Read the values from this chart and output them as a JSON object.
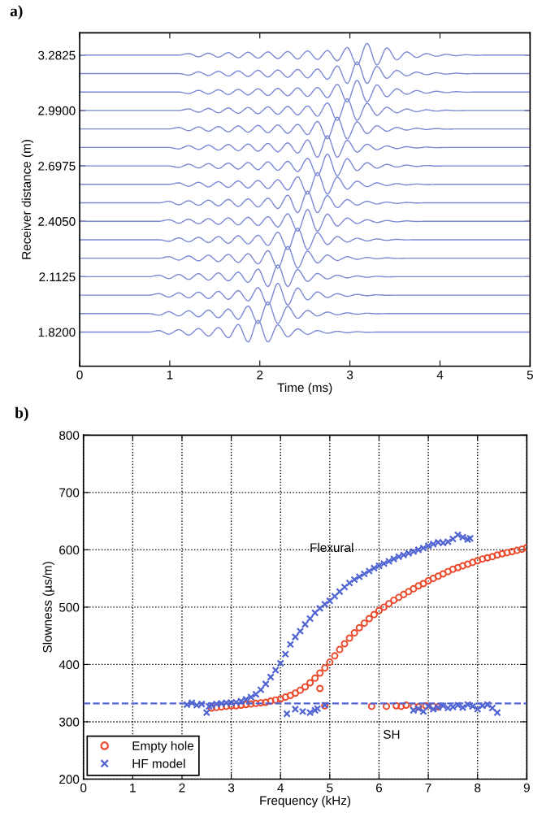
{
  "chart_data": [
    {
      "type": "line",
      "title": "a)",
      "xlabel": "Time (ms)",
      "ylabel": "Receiver distance (m)",
      "xlim": [
        0,
        5
      ],
      "ylim": [
        1.64,
        3.4
      ],
      "xticks": [
        0,
        1,
        2,
        3,
        4,
        5
      ],
      "yticks": [
        {
          "value": 1.82,
          "label": "1.8200"
        },
        {
          "value": 2.1125,
          "label": "2.1125"
        },
        {
          "value": 2.405,
          "label": "2.4050"
        },
        {
          "value": 2.6975,
          "label": "2.6975"
        },
        {
          "value": 2.99,
          "label": "2.9900"
        },
        {
          "value": 3.2825,
          "label": "3.2825"
        }
      ],
      "grid": false,
      "legend": false,
      "x": [
        0,
        0.77,
        0.88,
        0.99,
        1.1,
        1.21,
        1.32,
        1.43,
        1.54,
        1.65,
        1.76,
        1.87,
        1.98,
        2.09,
        2.2,
        2.31,
        2.42,
        2.53,
        2.64,
        2.75,
        2.86,
        2.97,
        3.08,
        3.19,
        3.3,
        3.41,
        3.52,
        3.63,
        3.74,
        3.85,
        3.96,
        4.07,
        4.18,
        4.29,
        4.4,
        4.51,
        4.62,
        5
      ],
      "series": [
        {
          "color": "#7b88d4",
          "values": [
            1.82,
            1.82,
            1.828,
            1.809,
            1.833,
            1.804,
            1.839,
            1.799,
            1.844,
            1.79,
            1.86,
            1.768,
            1.882,
            1.768,
            1.858,
            1.795,
            1.837,
            1.808,
            1.828,
            1.814,
            1.824,
            1.817,
            1.822,
            1.819,
            1.82,
            1.82,
            1.82,
            1.82,
            1.82,
            1.82,
            1.82,
            1.82,
            1.82,
            1.82,
            1.82,
            1.82,
            1.82,
            1.82
          ]
        },
        {
          "color": "#7b88d4",
          "values": [
            1.9175,
            1.9175,
            1.9095,
            1.9275,
            1.9055,
            1.9325,
            1.9005,
            1.9365,
            1.8955,
            1.9415,
            1.8875,
            1.9575,
            1.8655,
            1.9795,
            1.8655,
            1.9555,
            1.8925,
            1.9345,
            1.9055,
            1.9255,
            1.9115,
            1.9215,
            1.9145,
            1.9195,
            1.9165,
            1.9175,
            1.9175,
            1.9175,
            1.9175,
            1.9175,
            1.9175,
            1.9175,
            1.9175,
            1.9175,
            1.9175,
            1.9175,
            1.9175,
            1.9175
          ]
        },
        {
          "color": "#7b88d4",
          "values": [
            2.015,
            2.015,
            2.023,
            2.005,
            2.027,
            2.001,
            2.031,
            1.997,
            2.035,
            1.993,
            2.039,
            1.985,
            2.055,
            1.963,
            2.077,
            1.963,
            2.053,
            1.99,
            2.032,
            2.003,
            2.023,
            2.009,
            2.019,
            2.012,
            2.017,
            2.014,
            2.015,
            2.015,
            2.015,
            2.015,
            2.015,
            2.015,
            2.015,
            2.015,
            2.015,
            2.015,
            2.015,
            2.015
          ]
        },
        {
          "color": "#7b88d4",
          "values": [
            2.1125,
            2.1125,
            2.1205,
            2.1025,
            2.1245,
            2.0985,
            2.1285,
            2.0945,
            2.1325,
            2.0905,
            2.1365,
            2.0825,
            2.1525,
            2.0605,
            2.1745,
            2.0605,
            2.1505,
            2.0875,
            2.1295,
            2.1005,
            2.1205,
            2.1065,
            2.1165,
            2.1095,
            2.1145,
            2.1115,
            2.1125,
            2.1125,
            2.1125,
            2.1125,
            2.1125,
            2.1125,
            2.1125,
            2.1125,
            2.1125,
            2.1125,
            2.1125,
            2.1125
          ]
        },
        {
          "color": "#7b88d4",
          "values": [
            2.21,
            2.21,
            2.21,
            2.218,
            2.2,
            2.222,
            2.196,
            2.226,
            2.192,
            2.23,
            2.188,
            2.234,
            2.18,
            2.25,
            2.158,
            2.272,
            2.158,
            2.248,
            2.185,
            2.227,
            2.198,
            2.218,
            2.204,
            2.214,
            2.207,
            2.212,
            2.209,
            2.21,
            2.21,
            2.21,
            2.21,
            2.21,
            2.21,
            2.21,
            2.21,
            2.21,
            2.21,
            2.21
          ]
        },
        {
          "color": "#7b88d4",
          "values": [
            2.3075,
            2.3075,
            2.3075,
            2.2995,
            2.3175,
            2.2965,
            2.3205,
            2.2925,
            2.3245,
            2.2885,
            2.3285,
            2.2855,
            2.3315,
            2.2775,
            2.3475,
            2.2555,
            2.3695,
            2.2555,
            2.3455,
            2.2825,
            2.3245,
            2.2955,
            2.3155,
            2.3015,
            2.3115,
            2.3045,
            2.3095,
            2.3065,
            2.3075,
            2.3075,
            2.3075,
            2.3075,
            2.3075,
            2.3075,
            2.3075,
            2.3075,
            2.3075,
            2.3075
          ]
        },
        {
          "color": "#7b88d4",
          "values": [
            2.405,
            2.405,
            2.405,
            2.413,
            2.395,
            2.416,
            2.392,
            2.419,
            2.389,
            2.423,
            2.386,
            2.426,
            2.383,
            2.429,
            2.375,
            2.445,
            2.353,
            2.467,
            2.353,
            2.443,
            2.38,
            2.422,
            2.393,
            2.413,
            2.399,
            2.409,
            2.402,
            2.407,
            2.404,
            2.405,
            2.405,
            2.405,
            2.405,
            2.405,
            2.405,
            2.405,
            2.405,
            2.405
          ]
        },
        {
          "color": "#7b88d4",
          "values": [
            2.5025,
            2.5025,
            2.5025,
            2.5105,
            2.4925,
            2.5135,
            2.4895,
            2.5165,
            2.4865,
            2.5205,
            2.4835,
            2.5235,
            2.4805,
            2.5265,
            2.4725,
            2.5425,
            2.4505,
            2.5645,
            2.4505,
            2.5405,
            2.4775,
            2.5195,
            2.4905,
            2.5105,
            2.4965,
            2.5065,
            2.4995,
            2.5045,
            2.5015,
            2.5025,
            2.5025,
            2.5025,
            2.5025,
            2.5025,
            2.5025,
            2.5025,
            2.5025,
            2.5025
          ]
        },
        {
          "color": "#7b88d4",
          "values": [
            2.6,
            2.6,
            2.6,
            2.6,
            2.608,
            2.59,
            2.611,
            2.587,
            2.614,
            2.584,
            2.618,
            2.581,
            2.621,
            2.578,
            2.624,
            2.57,
            2.64,
            2.548,
            2.662,
            2.548,
            2.638,
            2.575,
            2.617,
            2.588,
            2.608,
            2.594,
            2.604,
            2.597,
            2.602,
            2.599,
            2.6,
            2.6,
            2.6,
            2.6,
            2.6,
            2.6,
            2.6,
            2.6
          ]
        },
        {
          "color": "#7b88d4",
          "values": [
            2.6975,
            2.6975,
            2.6975,
            2.6975,
            2.6895,
            2.7065,
            2.6865,
            2.7095,
            2.6835,
            2.7125,
            2.6805,
            2.7155,
            2.6775,
            2.7185,
            2.6745,
            2.7215,
            2.6675,
            2.7375,
            2.6455,
            2.7595,
            2.6455,
            2.7355,
            2.6725,
            2.7145,
            2.6855,
            2.7055,
            2.6915,
            2.7015,
            2.6945,
            2.6995,
            2.6965,
            2.6975,
            2.6975,
            2.6975,
            2.6975,
            2.6975,
            2.6975,
            2.6975
          ]
        },
        {
          "color": "#7b88d4",
          "values": [
            2.795,
            2.795,
            2.795,
            2.795,
            2.787,
            2.804,
            2.784,
            2.807,
            2.781,
            2.81,
            2.778,
            2.813,
            2.775,
            2.816,
            2.772,
            2.819,
            2.765,
            2.835,
            2.743,
            2.857,
            2.743,
            2.833,
            2.77,
            2.812,
            2.783,
            2.803,
            2.789,
            2.799,
            2.792,
            2.797,
            2.794,
            2.795,
            2.795,
            2.795,
            2.795,
            2.795,
            2.795,
            2.795
          ]
        },
        {
          "color": "#7b88d4",
          "values": [
            2.8925,
            2.8925,
            2.8925,
            2.8925,
            2.9005,
            2.8835,
            2.9035,
            2.8805,
            2.9055,
            2.8775,
            2.9085,
            2.8755,
            2.9115,
            2.8725,
            2.9135,
            2.8695,
            2.9165,
            2.8625,
            2.9325,
            2.8405,
            2.9545,
            2.8405,
            2.9305,
            2.8675,
            2.9095,
            2.8805,
            2.9005,
            2.8865,
            2.8965,
            2.8895,
            2.8945,
            2.8915,
            2.8925,
            2.8925,
            2.8925,
            2.8925,
            2.8925,
            2.8925
          ]
        },
        {
          "color": "#7b88d4",
          "values": [
            2.99,
            2.99,
            2.99,
            2.99,
            2.99,
            2.998,
            2.981,
            3.001,
            2.978,
            3.003,
            2.975,
            3.006,
            2.973,
            3.009,
            2.97,
            3.011,
            2.967,
            3.014,
            2.96,
            3.03,
            2.938,
            3.052,
            2.938,
            3.028,
            2.965,
            3.007,
            2.978,
            2.998,
            2.984,
            2.994,
            2.987,
            2.992,
            2.989,
            2.99,
            2.99,
            2.99,
            2.99,
            2.99
          ]
        },
        {
          "color": "#7b88d4",
          "values": [
            3.0875,
            3.0875,
            3.0875,
            3.0875,
            3.0875,
            3.0795,
            3.0965,
            3.0775,
            3.0995,
            3.0745,
            3.1015,
            3.0725,
            3.1045,
            3.0695,
            3.1065,
            3.0675,
            3.1095,
            3.0645,
            3.1115,
            3.0575,
            3.1275,
            3.0355,
            3.1495,
            3.0355,
            3.1255,
            3.0625,
            3.1045,
            3.0755,
            3.0955,
            3.0815,
            3.0915,
            3.0845,
            3.0895,
            3.0865,
            3.0875,
            3.0875,
            3.0875,
            3.0875
          ]
        },
        {
          "color": "#7b88d4",
          "values": [
            3.185,
            3.185,
            3.185,
            3.185,
            3.185,
            3.177,
            3.194,
            3.175,
            3.197,
            3.172,
            3.199,
            3.17,
            3.202,
            3.167,
            3.204,
            3.165,
            3.207,
            3.162,
            3.209,
            3.155,
            3.225,
            3.133,
            3.247,
            3.133,
            3.223,
            3.16,
            3.202,
            3.173,
            3.193,
            3.179,
            3.189,
            3.182,
            3.187,
            3.184,
            3.185,
            3.185,
            3.185,
            3.185
          ]
        },
        {
          "color": "#7b88d4",
          "values": [
            3.2825,
            3.2825,
            3.2825,
            3.2825,
            3.2825,
            3.2905,
            3.2735,
            3.2925,
            3.2715,
            3.2955,
            3.2685,
            3.2975,
            3.2665,
            3.2995,
            3.2645,
            3.3015,
            3.2615,
            3.3045,
            3.2595,
            3.3065,
            3.2525,
            3.3225,
            3.2305,
            3.3445,
            3.2305,
            3.3205,
            3.2575,
            3.2995,
            3.2705,
            3.2905,
            3.2765,
            3.2865,
            3.2795,
            3.2845,
            3.2815,
            3.2825,
            3.2825,
            3.2825
          ]
        }
      ]
    },
    {
      "type": "scatter",
      "title": "b)",
      "xlabel": "Frequency (kHz)",
      "ylabel": "Slowness (µs/m)",
      "xlim": [
        0,
        9
      ],
      "ylim": [
        200,
        800
      ],
      "xticks": [
        0,
        1,
        2,
        3,
        4,
        5,
        6,
        7,
        8,
        9
      ],
      "yticks": [
        200,
        300,
        400,
        500,
        600,
        700,
        800
      ],
      "grid": true,
      "legend": "bottom left",
      "ref_lines": [
        {
          "axis": "y",
          "value": 332,
          "color": "#4f63d2",
          "line_style": "dashed"
        }
      ],
      "annotations": [
        "Flexural",
        "SH"
      ],
      "series": [
        {
          "name": "Empty hole",
          "color": "#ec4a2c",
          "marker": "circle",
          "x": [
            2.6,
            2.7,
            2.8,
            2.9,
            3.0,
            3.1,
            3.2,
            3.3,
            3.4,
            3.5,
            3.6,
            3.7,
            3.8,
            3.9,
            4.0,
            4.1,
            4.2,
            4.3,
            4.4,
            4.5,
            4.6,
            4.7,
            4.8,
            4.9,
            5.0,
            5.1,
            5.2,
            5.3,
            5.4,
            5.5,
            5.6,
            5.7,
            5.8,
            5.9,
            6.0,
            6.1,
            6.2,
            6.3,
            6.4,
            6.5,
            6.6,
            6.7,
            6.8,
            6.9,
            7.0,
            7.1,
            7.2,
            7.3,
            7.4,
            7.5,
            7.6,
            7.7,
            7.8,
            7.9,
            8.0,
            8.1,
            8.2,
            8.3,
            8.4,
            8.5,
            8.6,
            8.7,
            8.8,
            8.9,
            9.0,
            4.8,
            4.9,
            5.85,
            6.15,
            6.35,
            6.45,
            6.55,
            6.7,
            6.8,
            6.95,
            7.1,
            7.2
          ],
          "values": [
            324,
            325,
            326,
            327,
            328,
            328,
            329,
            330,
            331,
            332,
            333,
            334,
            336,
            338,
            340,
            343,
            346,
            350,
            355,
            361,
            368,
            376,
            385,
            394,
            404,
            415,
            426,
            436,
            446,
            455,
            464,
            472,
            480,
            487,
            494,
            500,
            506,
            512,
            517,
            522,
            527,
            532,
            537,
            541,
            546,
            550,
            554,
            558,
            562,
            566,
            569,
            572,
            575,
            578,
            581,
            584,
            586,
            588,
            591,
            593,
            595,
            597,
            599,
            601,
            604,
            358,
            328,
            327,
            327,
            328,
            327,
            329,
            327,
            326,
            328,
            327,
            326
          ]
        },
        {
          "name": "HF model",
          "color": "#4f63d2",
          "marker": "cross",
          "x": [
            2.1,
            2.2,
            2.3,
            2.4,
            2.5,
            2.55,
            2.6,
            2.7,
            2.8,
            2.9,
            3.0,
            3.1,
            3.2,
            3.3,
            3.4,
            3.5,
            3.6,
            3.7,
            3.8,
            3.9,
            4.0,
            4.1,
            4.2,
            4.3,
            4.4,
            4.5,
            4.6,
            4.7,
            4.8,
            4.9,
            5.0,
            5.1,
            5.2,
            5.3,
            5.4,
            5.5,
            5.6,
            5.7,
            5.8,
            5.9,
            6.0,
            6.1,
            6.2,
            6.3,
            6.4,
            6.5,
            6.6,
            6.7,
            6.8,
            6.9,
            7.0,
            7.1,
            7.2,
            7.3,
            7.4,
            7.5,
            7.6,
            7.7,
            7.8,
            7.85,
            4.13,
            4.3,
            4.45,
            4.6,
            4.7,
            4.75,
            4.9,
            6.7,
            6.8,
            6.9,
            7.0,
            7.1,
            7.2,
            7.3,
            7.4,
            7.5,
            7.6,
            7.7,
            7.8,
            7.9,
            8.0,
            8.1,
            8.2,
            8.3,
            8.4
          ],
          "values": [
            330,
            333,
            329,
            331,
            316,
            327,
            329,
            331,
            332,
            333,
            333,
            334,
            336,
            339,
            343,
            348,
            356,
            366,
            378,
            390,
            402,
            418,
            435,
            448,
            458,
            470,
            480,
            490,
            498,
            505,
            511,
            519,
            527,
            535,
            542,
            548,
            553,
            558,
            563,
            568,
            572,
            576,
            580,
            584,
            588,
            591,
            594,
            597,
            600,
            603,
            607,
            610,
            613,
            612,
            614,
            619,
            626,
            622,
            618,
            620,
            314,
            322,
            318,
            316,
            320,
            323,
            329,
            320,
            323,
            318,
            327,
            322,
            325,
            328,
            324,
            326,
            329,
            325,
            330,
            327,
            322,
            328,
            330,
            324,
            316
          ]
        }
      ]
    }
  ]
}
